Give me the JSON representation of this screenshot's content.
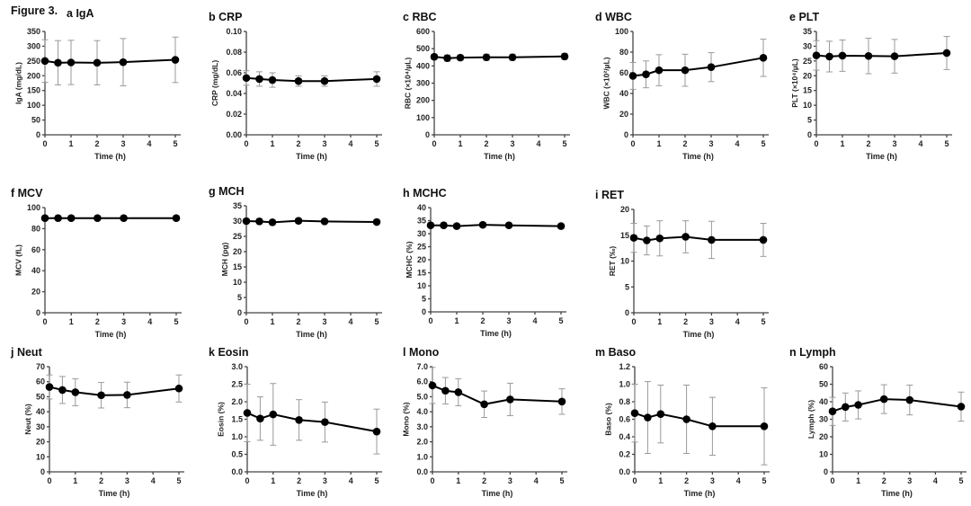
{
  "figure_label": "Figure 3.",
  "chart_data": [
    {
      "id": "a",
      "type": "line",
      "letter": "a",
      "title": "IgA",
      "xlabel": "Time (h)",
      "ylabel": "IgA (mg/dL)",
      "x": [
        0,
        0.5,
        1,
        2,
        3,
        5
      ],
      "values": [
        250,
        244,
        245,
        244,
        246,
        254
      ],
      "error": [
        72,
        75,
        75,
        75,
        80,
        77
      ],
      "xlim": [
        0,
        5
      ],
      "xticks": [
        "0",
        "1",
        "2",
        "3",
        "4",
        "5"
      ],
      "ylim": [
        0,
        350
      ],
      "yticks": [
        "0",
        "50",
        "100",
        "150",
        "200",
        "250",
        "300",
        "350"
      ]
    },
    {
      "id": "b",
      "type": "line",
      "letter": "b",
      "title": "CRP",
      "xlabel": "Time (h)",
      "ylabel": "CRP (mg/dL)",
      "x": [
        0,
        0.5,
        1,
        2,
        3,
        5
      ],
      "values": [
        0.055,
        0.054,
        0.053,
        0.052,
        0.052,
        0.054
      ],
      "error": [
        0.007,
        0.007,
        0.007,
        0.005,
        0.005,
        0.007
      ],
      "xlim": [
        0,
        5
      ],
      "xticks": [
        "0",
        "1",
        "2",
        "3",
        "4",
        "5"
      ],
      "ylim": [
        0,
        0.1
      ],
      "yticks": [
        "0.00",
        "0.02",
        "0.04",
        "0.06",
        "0.08",
        "0.10"
      ]
    },
    {
      "id": "c",
      "type": "line",
      "letter": "c",
      "title": "RBC",
      "xlabel": "Time (h)",
      "ylabel": "RBC (×10⁴/µL)",
      "x": [
        0,
        0.5,
        1,
        2,
        3,
        5
      ],
      "values": [
        453,
        445,
        448,
        450,
        450,
        455
      ],
      "error": [
        15,
        18,
        15,
        18,
        18,
        18
      ],
      "xlim": [
        0,
        5
      ],
      "xticks": [
        "0",
        "1",
        "2",
        "3",
        "4",
        "5"
      ],
      "ylim": [
        0,
        600
      ],
      "yticks": [
        "0",
        "100",
        "200",
        "300",
        "400",
        "500",
        "600"
      ]
    },
    {
      "id": "d",
      "type": "line",
      "letter": "d",
      "title": "WBC",
      "xlabel": "Time (h)",
      "ylabel": "WBC (×10²/µL)",
      "x": [
        0,
        0.5,
        1,
        2,
        3,
        5
      ],
      "values": [
        57,
        58.5,
        62.5,
        62.5,
        65.5,
        74.5
      ],
      "error": [
        13,
        13,
        15,
        15.5,
        14,
        18
      ],
      "xlim": [
        0,
        5
      ],
      "xticks": [
        "0",
        "1",
        "2",
        "3",
        "4",
        "5"
      ],
      "ylim": [
        0,
        100
      ],
      "yticks": [
        "0",
        "20",
        "40",
        "60",
        "80",
        "100"
      ]
    },
    {
      "id": "e",
      "type": "line",
      "letter": "e",
      "title": "PLT",
      "xlabel": "Time (h)",
      "ylabel": "PLT (×10⁴/µL)",
      "x": [
        0,
        0.5,
        1,
        2,
        3,
        5
      ],
      "values": [
        26.9,
        26.5,
        26.8,
        26.7,
        26.6,
        27.7
      ],
      "error": [
        5,
        5.2,
        5.3,
        6,
        5.7,
        5.6
      ],
      "xlim": [
        0,
        5
      ],
      "xticks": [
        "0",
        "1",
        "2",
        "3",
        "4",
        "5"
      ],
      "ylim": [
        0,
        35
      ],
      "yticks": [
        "0",
        "5",
        "10",
        "15",
        "20",
        "25",
        "30",
        "35"
      ]
    },
    {
      "id": "f",
      "type": "line",
      "letter": "f",
      "title": "MCV",
      "xlabel": "Time (h)",
      "ylabel": "MCV (fL)",
      "x": [
        0,
        0.5,
        1,
        2,
        3,
        5
      ],
      "values": [
        90,
        90,
        90,
        90,
        90,
        90
      ],
      "error": [
        1.5,
        1.5,
        1.5,
        1.5,
        1.5,
        1.5
      ],
      "xlim": [
        0,
        5
      ],
      "xticks": [
        "0",
        "1",
        "2",
        "3",
        "4",
        "5"
      ],
      "ylim": [
        0,
        100
      ],
      "yticks": [
        "0",
        "20",
        "40",
        "60",
        "80",
        "100"
      ]
    },
    {
      "id": "g",
      "type": "line",
      "letter": "g",
      "title": "MCH",
      "xlabel": "Time (h)",
      "ylabel": "MCH (pg)",
      "x": [
        0,
        0.5,
        1,
        2,
        3,
        5
      ],
      "values": [
        30,
        29.9,
        29.6,
        30.1,
        29.9,
        29.7
      ],
      "error": [
        0.8,
        0.8,
        0.8,
        0.8,
        0.8,
        0.8
      ],
      "xlim": [
        0,
        5
      ],
      "xticks": [
        "0",
        "1",
        "2",
        "3",
        "4",
        "5"
      ],
      "ylim": [
        0,
        35
      ],
      "yticks": [
        "0",
        "5",
        "10",
        "15",
        "20",
        "25",
        "30",
        "35"
      ]
    },
    {
      "id": "h",
      "type": "line",
      "letter": "h",
      "title": "MCHC",
      "xlabel": "Time (h)",
      "ylabel": "MCHC (%)",
      "x": [
        0,
        0.5,
        1,
        2,
        3,
        5
      ],
      "values": [
        33.2,
        33.2,
        32.9,
        33.4,
        33.2,
        32.9
      ],
      "error": [
        0.8,
        0.8,
        0.8,
        0.8,
        0.8,
        0.8
      ],
      "xlim": [
        0,
        5
      ],
      "xticks": [
        "0",
        "1",
        "2",
        "3",
        "4",
        "5"
      ],
      "ylim": [
        0,
        40
      ],
      "yticks": [
        "0",
        "5",
        "10",
        "15",
        "20",
        "25",
        "30",
        "35",
        "40"
      ]
    },
    {
      "id": "i",
      "type": "line",
      "letter": "i",
      "title": "RET",
      "xlabel": "Time (h)",
      "ylabel": "RET (‰)",
      "x": [
        0,
        0.5,
        1,
        2,
        3,
        5
      ],
      "values": [
        14.5,
        14,
        14.4,
        14.7,
        14.1,
        14.1
      ],
      "error": [
        2.8,
        2.8,
        3.4,
        3.1,
        3.6,
        3.2
      ],
      "xlim": [
        0,
        5
      ],
      "xticks": [
        "0",
        "1",
        "2",
        "3",
        "4",
        "5"
      ],
      "ylim": [
        0,
        20
      ],
      "yticks": [
        "0",
        "5",
        "10",
        "15",
        "20"
      ]
    },
    {
      "id": "j",
      "type": "line",
      "letter": "j",
      "title": "Neut",
      "xlabel": "Time (h)",
      "ylabel": "Neut (%)",
      "x": [
        0,
        0.5,
        1,
        2,
        3,
        5
      ],
      "values": [
        56.5,
        54.5,
        53,
        51,
        51.2,
        55.5
      ],
      "error": [
        8,
        9,
        9,
        8.5,
        8.5,
        9
      ],
      "xlim": [
        0,
        5
      ],
      "xticks": [
        "0",
        "1",
        "2",
        "3",
        "4",
        "5"
      ],
      "ylim": [
        0,
        70
      ],
      "yticks": [
        "0",
        "10",
        "20",
        "30",
        "40",
        "50",
        "60",
        "70"
      ]
    },
    {
      "id": "k",
      "type": "line",
      "letter": "k",
      "title": "Eosin",
      "xlabel": "Time (h)",
      "ylabel": "Eosin (%)",
      "x": [
        0,
        0.5,
        1,
        2,
        3,
        5
      ],
      "values": [
        1.68,
        1.52,
        1.64,
        1.48,
        1.42,
        1.15
      ],
      "error": [
        0.82,
        0.62,
        0.88,
        0.58,
        0.57,
        0.64
      ],
      "xlim": [
        0,
        5
      ],
      "xticks": [
        "0",
        "1",
        "2",
        "3",
        "4",
        "5"
      ],
      "ylim": [
        0,
        3.0
      ],
      "yticks": [
        "0.0",
        "0.5",
        "1.0",
        "1.5",
        "2.0",
        "2.5",
        "3.0"
      ]
    },
    {
      "id": "l",
      "type": "line",
      "letter": "l",
      "title": "Mono",
      "xlabel": "Time (h)",
      "ylabel": "Mono (%)",
      "x": [
        0,
        0.5,
        1,
        2,
        3,
        5
      ],
      "values": [
        5.75,
        5.4,
        5.3,
        4.5,
        4.82,
        4.68
      ],
      "error": [
        1.2,
        0.88,
        0.9,
        0.88,
        1.08,
        0.85
      ],
      "xlim": [
        0,
        5
      ],
      "xticks": [
        "0",
        "1",
        "2",
        "3",
        "4",
        "5"
      ],
      "ylim": [
        0,
        7.0
      ],
      "yticks": [
        "0.0",
        "1.0",
        "2.0",
        "3.0",
        "4.0",
        "5.0",
        "6.0",
        "7.0"
      ]
    },
    {
      "id": "m",
      "type": "line",
      "letter": "m",
      "title": "Baso",
      "xlabel": "Time (h)",
      "ylabel": "Baso (%)",
      "x": [
        0,
        0.5,
        1,
        2,
        3,
        5
      ],
      "values": [
        0.67,
        0.62,
        0.66,
        0.6,
        0.52,
        0.52
      ],
      "error": [
        0.33,
        0.41,
        0.33,
        0.39,
        0.33,
        0.44
      ],
      "xlim": [
        0,
        5
      ],
      "xticks": [
        "0",
        "1",
        "2",
        "3",
        "4",
        "5"
      ],
      "ylim": [
        0,
        1.2
      ],
      "yticks": [
        "0.0",
        "0.2",
        "0.4",
        "0.6",
        "0.8",
        "1.0",
        "1.2"
      ]
    },
    {
      "id": "n",
      "type": "line",
      "letter": "n",
      "title": "Lymph",
      "xlabel": "Time (h)",
      "ylabel": "Lymph (%)",
      "x": [
        0,
        0.5,
        1,
        2,
        3,
        5
      ],
      "values": [
        34.5,
        37,
        38.2,
        41.5,
        41,
        37.2
      ],
      "error": [
        8,
        8,
        8,
        8.2,
        8.5,
        8.3
      ],
      "xlim": [
        0,
        5
      ],
      "xticks": [
        "0",
        "1",
        "2",
        "3",
        "4",
        "5"
      ],
      "ylim": [
        0,
        60
      ],
      "yticks": [
        "0",
        "10",
        "20",
        "30",
        "40",
        "50",
        "60"
      ]
    }
  ]
}
